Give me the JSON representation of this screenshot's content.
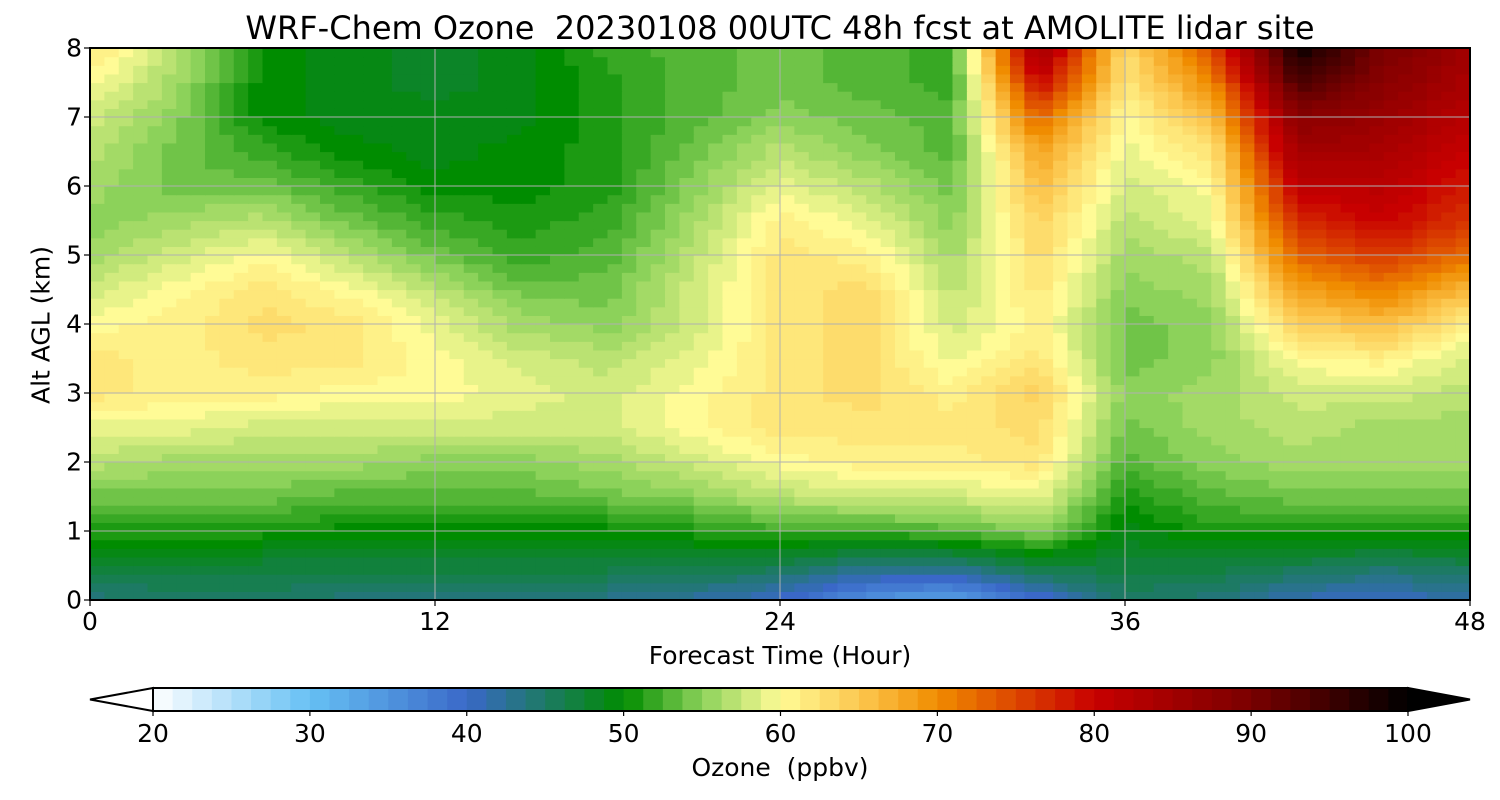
{
  "chart_data": {
    "type": "heatmap",
    "title": "WRF-Chem Ozone  20230108 00UTC 48h fcst at AMOLITE lidar site",
    "xlabel": "Forecast Time (Hour)",
    "ylabel": "Alt AGL (km)",
    "xlim": [
      0,
      48
    ],
    "ylim": [
      0,
      8
    ],
    "xticks": [
      "0",
      "12",
      "24",
      "36",
      "48"
    ],
    "yticks": [
      "0",
      "1",
      "2",
      "3",
      "4",
      "5",
      "6",
      "7",
      "8"
    ],
    "grid": true,
    "x": [
      0,
      3,
      6,
      9,
      12,
      15,
      18,
      21,
      24,
      27,
      30,
      33,
      36,
      39,
      42,
      45,
      48
    ],
    "y": [
      0,
      0.5,
      1,
      1.5,
      2,
      2.5,
      3,
      3.5,
      4,
      4.5,
      5,
      5.5,
      6,
      6.5,
      7,
      7.5,
      8
    ],
    "z": [
      [
        44,
        45,
        45,
        44,
        44,
        44,
        43,
        42,
        40,
        35,
        33,
        39,
        45,
        44,
        41,
        40,
        42
      ],
      [
        47,
        47,
        47,
        47,
        47,
        47,
        47,
        47,
        46,
        44,
        44,
        47,
        47,
        47,
        46,
        45,
        46
      ],
      [
        51,
        51,
        51,
        50,
        50,
        50,
        50,
        51,
        52,
        52,
        53,
        55,
        49,
        51,
        51,
        51,
        51
      ],
      [
        54,
        54,
        54,
        53,
        53,
        53,
        54,
        55,
        57,
        58,
        58,
        59,
        51,
        53,
        54,
        54,
        54
      ],
      [
        57,
        56,
        56,
        56,
        55,
        55,
        56,
        58,
        60,
        61,
        61,
        62,
        53,
        55,
        56,
        56,
        56
      ],
      [
        59,
        59,
        58,
        58,
        58,
        58,
        58,
        60,
        62,
        62,
        62,
        63,
        54,
        56,
        57,
        56,
        56
      ],
      [
        62,
        61,
        61,
        60,
        60,
        59,
        58,
        60,
        62,
        63,
        61,
        64,
        55,
        56,
        58,
        58,
        57
      ],
      [
        62,
        61,
        62,
        62,
        60,
        58,
        57,
        59,
        62,
        63,
        59,
        62,
        54,
        55,
        60,
        61,
        58
      ],
      [
        60,
        61,
        63,
        62,
        59,
        56,
        55,
        58,
        62,
        63,
        58,
        61,
        54,
        55,
        64,
        66,
        61
      ],
      [
        58,
        60,
        62,
        60,
        57,
        54,
        54,
        58,
        62,
        63,
        57,
        62,
        55,
        56,
        68,
        71,
        66
      ],
      [
        56,
        58,
        60,
        57,
        54,
        52,
        53,
        57,
        62,
        61,
        56,
        63,
        56,
        57,
        73,
        76,
        72
      ],
      [
        55,
        56,
        57,
        54,
        52,
        51,
        52,
        56,
        61,
        59,
        55,
        64,
        57,
        59,
        77,
        80,
        76
      ],
      [
        56,
        54,
        54,
        52,
        50,
        50,
        51,
        55,
        59,
        57,
        54,
        66,
        58,
        60,
        81,
        82,
        78
      ],
      [
        57,
        54,
        52,
        50,
        49,
        50,
        51,
        54,
        57,
        55,
        53,
        68,
        59,
        62,
        85,
        84,
        80
      ],
      [
        58,
        55,
        50,
        49,
        49,
        49,
        51,
        53,
        55,
        54,
        53,
        73,
        60,
        66,
        88,
        86,
        82
      ],
      [
        60,
        56,
        50,
        49,
        48,
        49,
        51,
        53,
        54,
        53,
        52,
        80,
        62,
        70,
        94,
        88,
        84
      ],
      [
        62,
        57,
        50,
        49,
        48,
        49,
        52,
        53,
        54,
        53,
        52,
        86,
        63,
        74,
        99,
        90,
        85
      ]
    ],
    "colorbar": {
      "label": "Ozone  (ppbv)",
      "ticks": [
        "20",
        "30",
        "40",
        "50",
        "60",
        "70",
        "80",
        "90",
        "100"
      ],
      "range": [
        20,
        100
      ],
      "extend": "both",
      "colors": {
        "20": "#ffffff",
        "30": "#66c0f4",
        "40": "#3a68c8",
        "50": "#008c00",
        "55": "#8cd25a",
        "60": "#fffb96",
        "65": "#fcc850",
        "70": "#f08c00",
        "80": "#c80000",
        "90": "#7a0000",
        "100": "#000000"
      }
    }
  }
}
